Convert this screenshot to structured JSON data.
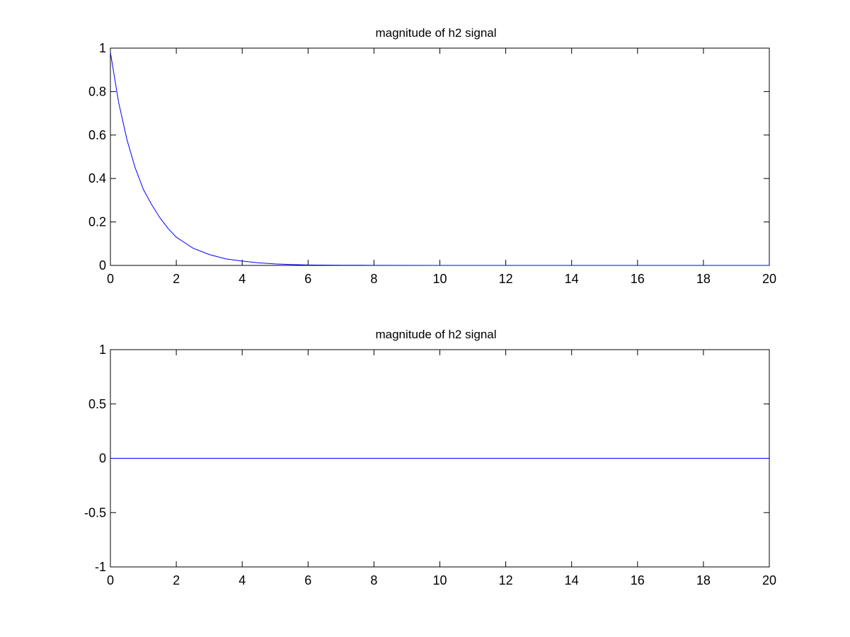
{
  "chart_data": [
    {
      "type": "line",
      "title": "magnitude of h2 signal",
      "xlabel": "",
      "ylabel": "",
      "xlim": [
        0,
        20
      ],
      "ylim": [
        0,
        1
      ],
      "xticks": [
        "0",
        "2",
        "4",
        "6",
        "8",
        "10",
        "12",
        "14",
        "16",
        "18",
        "20"
      ],
      "yticks": [
        "0",
        "0.2",
        "0.4",
        "0.6",
        "0.8",
        "1"
      ],
      "grid": false,
      "color": "#0000ff",
      "x": [
        0,
        0.25,
        0.5,
        0.75,
        1,
        1.25,
        1.5,
        1.75,
        2,
        2.5,
        3,
        3.5,
        4,
        4.5,
        5,
        5.5,
        6,
        7,
        8,
        10,
        12,
        14,
        16,
        18,
        20
      ],
      "y": [
        0.98,
        0.75,
        0.58,
        0.45,
        0.35,
        0.28,
        0.22,
        0.17,
        0.13,
        0.08,
        0.05,
        0.03,
        0.02,
        0.012,
        0.007,
        0.004,
        0.002,
        0.001,
        0.0005,
        0,
        0,
        0,
        0,
        0,
        0
      ]
    },
    {
      "type": "line",
      "title": "magnitude of h2 signal",
      "xlabel": "",
      "ylabel": "",
      "xlim": [
        0,
        20
      ],
      "ylim": [
        -1,
        1
      ],
      "xticks": [
        "0",
        "2",
        "4",
        "6",
        "8",
        "10",
        "12",
        "14",
        "16",
        "18",
        "20"
      ],
      "yticks": [
        "-1",
        "-0.5",
        "0",
        "0.5",
        "1"
      ],
      "grid": false,
      "color": "#0000ff",
      "x": [
        0,
        20
      ],
      "y": [
        0,
        0
      ]
    }
  ]
}
